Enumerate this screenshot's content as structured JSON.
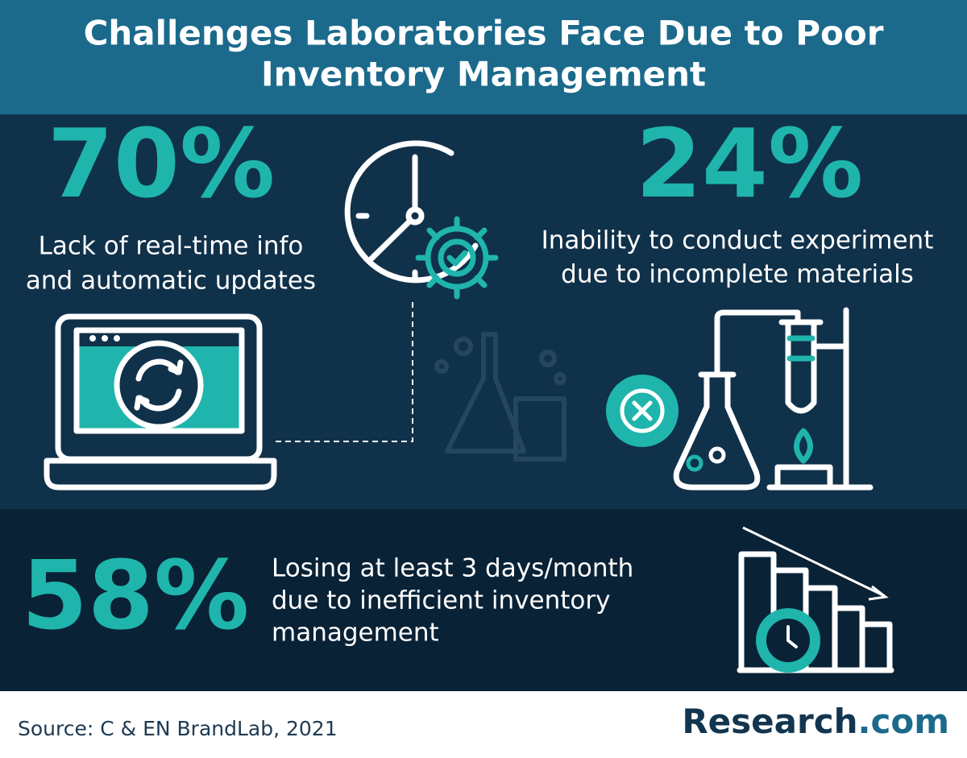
{
  "header": {
    "title_lines": [
      "Challenges Laboratories Face Due to Poor",
      "Inventory Management"
    ]
  },
  "stats": [
    {
      "value": "70%",
      "label_lines": [
        "Lack of real-time info",
        "and automatic updates"
      ]
    },
    {
      "value": "24%",
      "label_lines": [
        "Inability to conduct experiment",
        "due to incomplete materials"
      ]
    },
    {
      "value": "58%",
      "label_lines": [
        "Losing at least 3 days/month",
        "due to inefficient inventory",
        "management"
      ]
    }
  ],
  "footer": {
    "source": "Source: C & EN BrandLab, 2021",
    "brand": {
      "name": "Research",
      "suffix": ".com"
    }
  }
}
